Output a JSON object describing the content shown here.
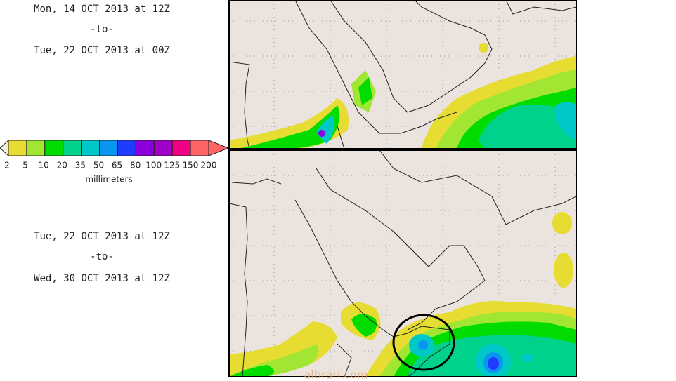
{
  "top_panel": {
    "from": "Mon, 14 OCT 2013 at 12Z",
    "separator": "-to-",
    "to": "Tue, 22 OCT 2013 at 00Z"
  },
  "bottom_panel": {
    "from": "Tue, 22 OCT 2013 at 12Z",
    "separator": "-to-",
    "to": "Wed, 30 OCT 2013 at 12Z"
  },
  "colorbar": {
    "labels": [
      2,
      5,
      10,
      20,
      35,
      50,
      65,
      80,
      100,
      125,
      150,
      200
    ],
    "colors": [
      "#e6dc32",
      "#a0e632",
      "#00dc00",
      "#00d28c",
      "#00c8c8",
      "#0a96f0",
      "#1e3cff",
      "#8c00dc",
      "#a000c8",
      "#f00082",
      "#ff6464"
    ],
    "under_color": "#f0f0e6",
    "over_color": "#ff6464",
    "unit": "millimeters"
  },
  "watermark": "albrari.com"
}
